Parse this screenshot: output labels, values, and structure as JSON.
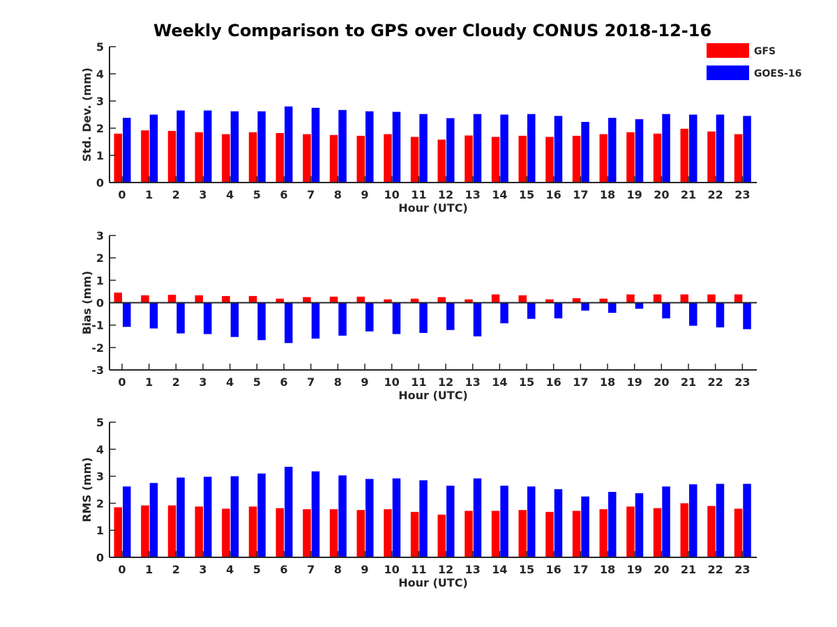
{
  "title": "Weekly Comparison to GPS over Cloudy CONUS 2018-12-16",
  "colors": {
    "GFS": "#ff0000",
    "GOES-16": "#0000ff",
    "axis": "#262626"
  },
  "legend": {
    "position": "top-right",
    "entries": [
      "GFS",
      "GOES-16"
    ]
  },
  "chart_data": [
    {
      "type": "bar",
      "title": "Weekly Comparison to GPS over Cloudy CONUS 2018-12-16",
      "xlabel": "Hour (UTC)",
      "ylabel": "Std. Dev. (mm)",
      "ylim": [
        0,
        5
      ],
      "yticks": [
        0,
        1,
        2,
        3,
        4,
        5
      ],
      "categories": [
        "0",
        "1",
        "2",
        "3",
        "4",
        "5",
        "6",
        "7",
        "8",
        "9",
        "10",
        "11",
        "12",
        "13",
        "14",
        "15",
        "16",
        "17",
        "18",
        "19",
        "20",
        "21",
        "22",
        "23"
      ],
      "series": [
        {
          "name": "GFS",
          "values": [
            1.8,
            1.92,
            1.9,
            1.85,
            1.78,
            1.85,
            1.82,
            1.78,
            1.75,
            1.72,
            1.78,
            1.68,
            1.58,
            1.73,
            1.68,
            1.72,
            1.68,
            1.72,
            1.78,
            1.85,
            1.8,
            1.98,
            1.88,
            1.78
          ]
        },
        {
          "name": "GOES-16",
          "values": [
            2.38,
            2.5,
            2.65,
            2.65,
            2.62,
            2.62,
            2.8,
            2.75,
            2.67,
            2.62,
            2.6,
            2.52,
            2.37,
            2.52,
            2.5,
            2.52,
            2.45,
            2.23,
            2.38,
            2.33,
            2.52,
            2.5,
            2.5,
            2.45
          ]
        }
      ]
    },
    {
      "type": "bar",
      "xlabel": "Hour (UTC)",
      "ylabel": "Bias (mm)",
      "ylim": [
        -3,
        3
      ],
      "yticks": [
        -3,
        -2,
        -1,
        0,
        1,
        2,
        3
      ],
      "categories": [
        "0",
        "1",
        "2",
        "3",
        "4",
        "5",
        "6",
        "7",
        "8",
        "9",
        "10",
        "11",
        "12",
        "13",
        "14",
        "15",
        "16",
        "17",
        "18",
        "19",
        "20",
        "21",
        "22",
        "23"
      ],
      "series": [
        {
          "name": "GFS",
          "values": [
            0.45,
            0.33,
            0.35,
            0.33,
            0.3,
            0.3,
            0.18,
            0.25,
            0.27,
            0.27,
            0.15,
            0.18,
            0.25,
            0.15,
            0.37,
            0.33,
            0.15,
            0.2,
            0.18,
            0.37,
            0.37,
            0.37,
            0.37,
            0.37
          ]
        },
        {
          "name": "GOES-16",
          "values": [
            -1.08,
            -1.15,
            -1.37,
            -1.4,
            -1.53,
            -1.67,
            -1.8,
            -1.6,
            -1.47,
            -1.28,
            -1.4,
            -1.35,
            -1.22,
            -1.5,
            -0.92,
            -0.72,
            -0.7,
            -0.35,
            -0.45,
            -0.27,
            -0.7,
            -1.03,
            -1.1,
            -1.18
          ]
        }
      ]
    },
    {
      "type": "bar",
      "xlabel": "Hour (UTC)",
      "ylabel": "RMS (mm)",
      "ylim": [
        0,
        5
      ],
      "yticks": [
        0,
        1,
        2,
        3,
        4,
        5
      ],
      "categories": [
        "0",
        "1",
        "2",
        "3",
        "4",
        "5",
        "6",
        "7",
        "8",
        "9",
        "10",
        "11",
        "12",
        "13",
        "14",
        "15",
        "16",
        "17",
        "18",
        "19",
        "20",
        "21",
        "22",
        "23"
      ],
      "series": [
        {
          "name": "GFS",
          "values": [
            1.85,
            1.92,
            1.92,
            1.88,
            1.8,
            1.88,
            1.82,
            1.78,
            1.78,
            1.75,
            1.78,
            1.68,
            1.58,
            1.72,
            1.72,
            1.75,
            1.68,
            1.72,
            1.78,
            1.88,
            1.82,
            2.0,
            1.9,
            1.8
          ]
        },
        {
          "name": "GOES-16",
          "values": [
            2.62,
            2.75,
            2.95,
            2.98,
            3.0,
            3.1,
            3.35,
            3.18,
            3.03,
            2.9,
            2.92,
            2.85,
            2.65,
            2.92,
            2.65,
            2.62,
            2.52,
            2.25,
            2.42,
            2.37,
            2.62,
            2.7,
            2.72,
            2.72
          ]
        }
      ]
    }
  ]
}
